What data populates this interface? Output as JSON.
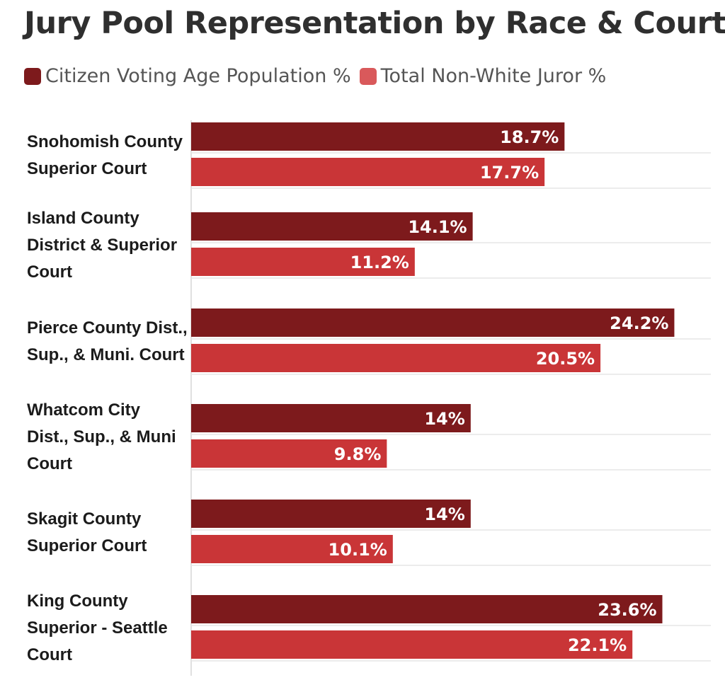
{
  "chart_data": {
    "type": "bar",
    "orientation": "horizontal",
    "title": "Jury Pool Representation by Race & Court",
    "categories": [
      [
        "Snohomish County",
        "Superior Court"
      ],
      [
        "Island County",
        "District & Superior",
        "Court"
      ],
      [
        "Pierce County Dist.,",
        "Sup., & Muni. Court"
      ],
      [
        "Whatcom City",
        "Dist., Sup., & Muni",
        "Court"
      ],
      [
        "Skagit County",
        "Superior Court"
      ],
      [
        "King County",
        "Superior - Seattle",
        "Court"
      ]
    ],
    "series": [
      {
        "name": "Citizen Voting Age Population %",
        "color": "#7d1a1c",
        "values": [
          18.7,
          14.1,
          24.2,
          14,
          14,
          23.6
        ],
        "labels": [
          "18.7%",
          "14.1%",
          "24.2%",
          "14%",
          "14%",
          "23.6%"
        ]
      },
      {
        "name": "Total Non-White Juror %",
        "color": "#c93537",
        "values": [
          17.7,
          11.2,
          20.5,
          9.8,
          10.1,
          22.1
        ],
        "labels": [
          "17.7%",
          "11.2%",
          "20.5%",
          "9.8%",
          "10.1%",
          "22.1%"
        ]
      }
    ],
    "xlim": [
      0,
      25
    ],
    "legend_position": "top-left",
    "grid": true
  }
}
